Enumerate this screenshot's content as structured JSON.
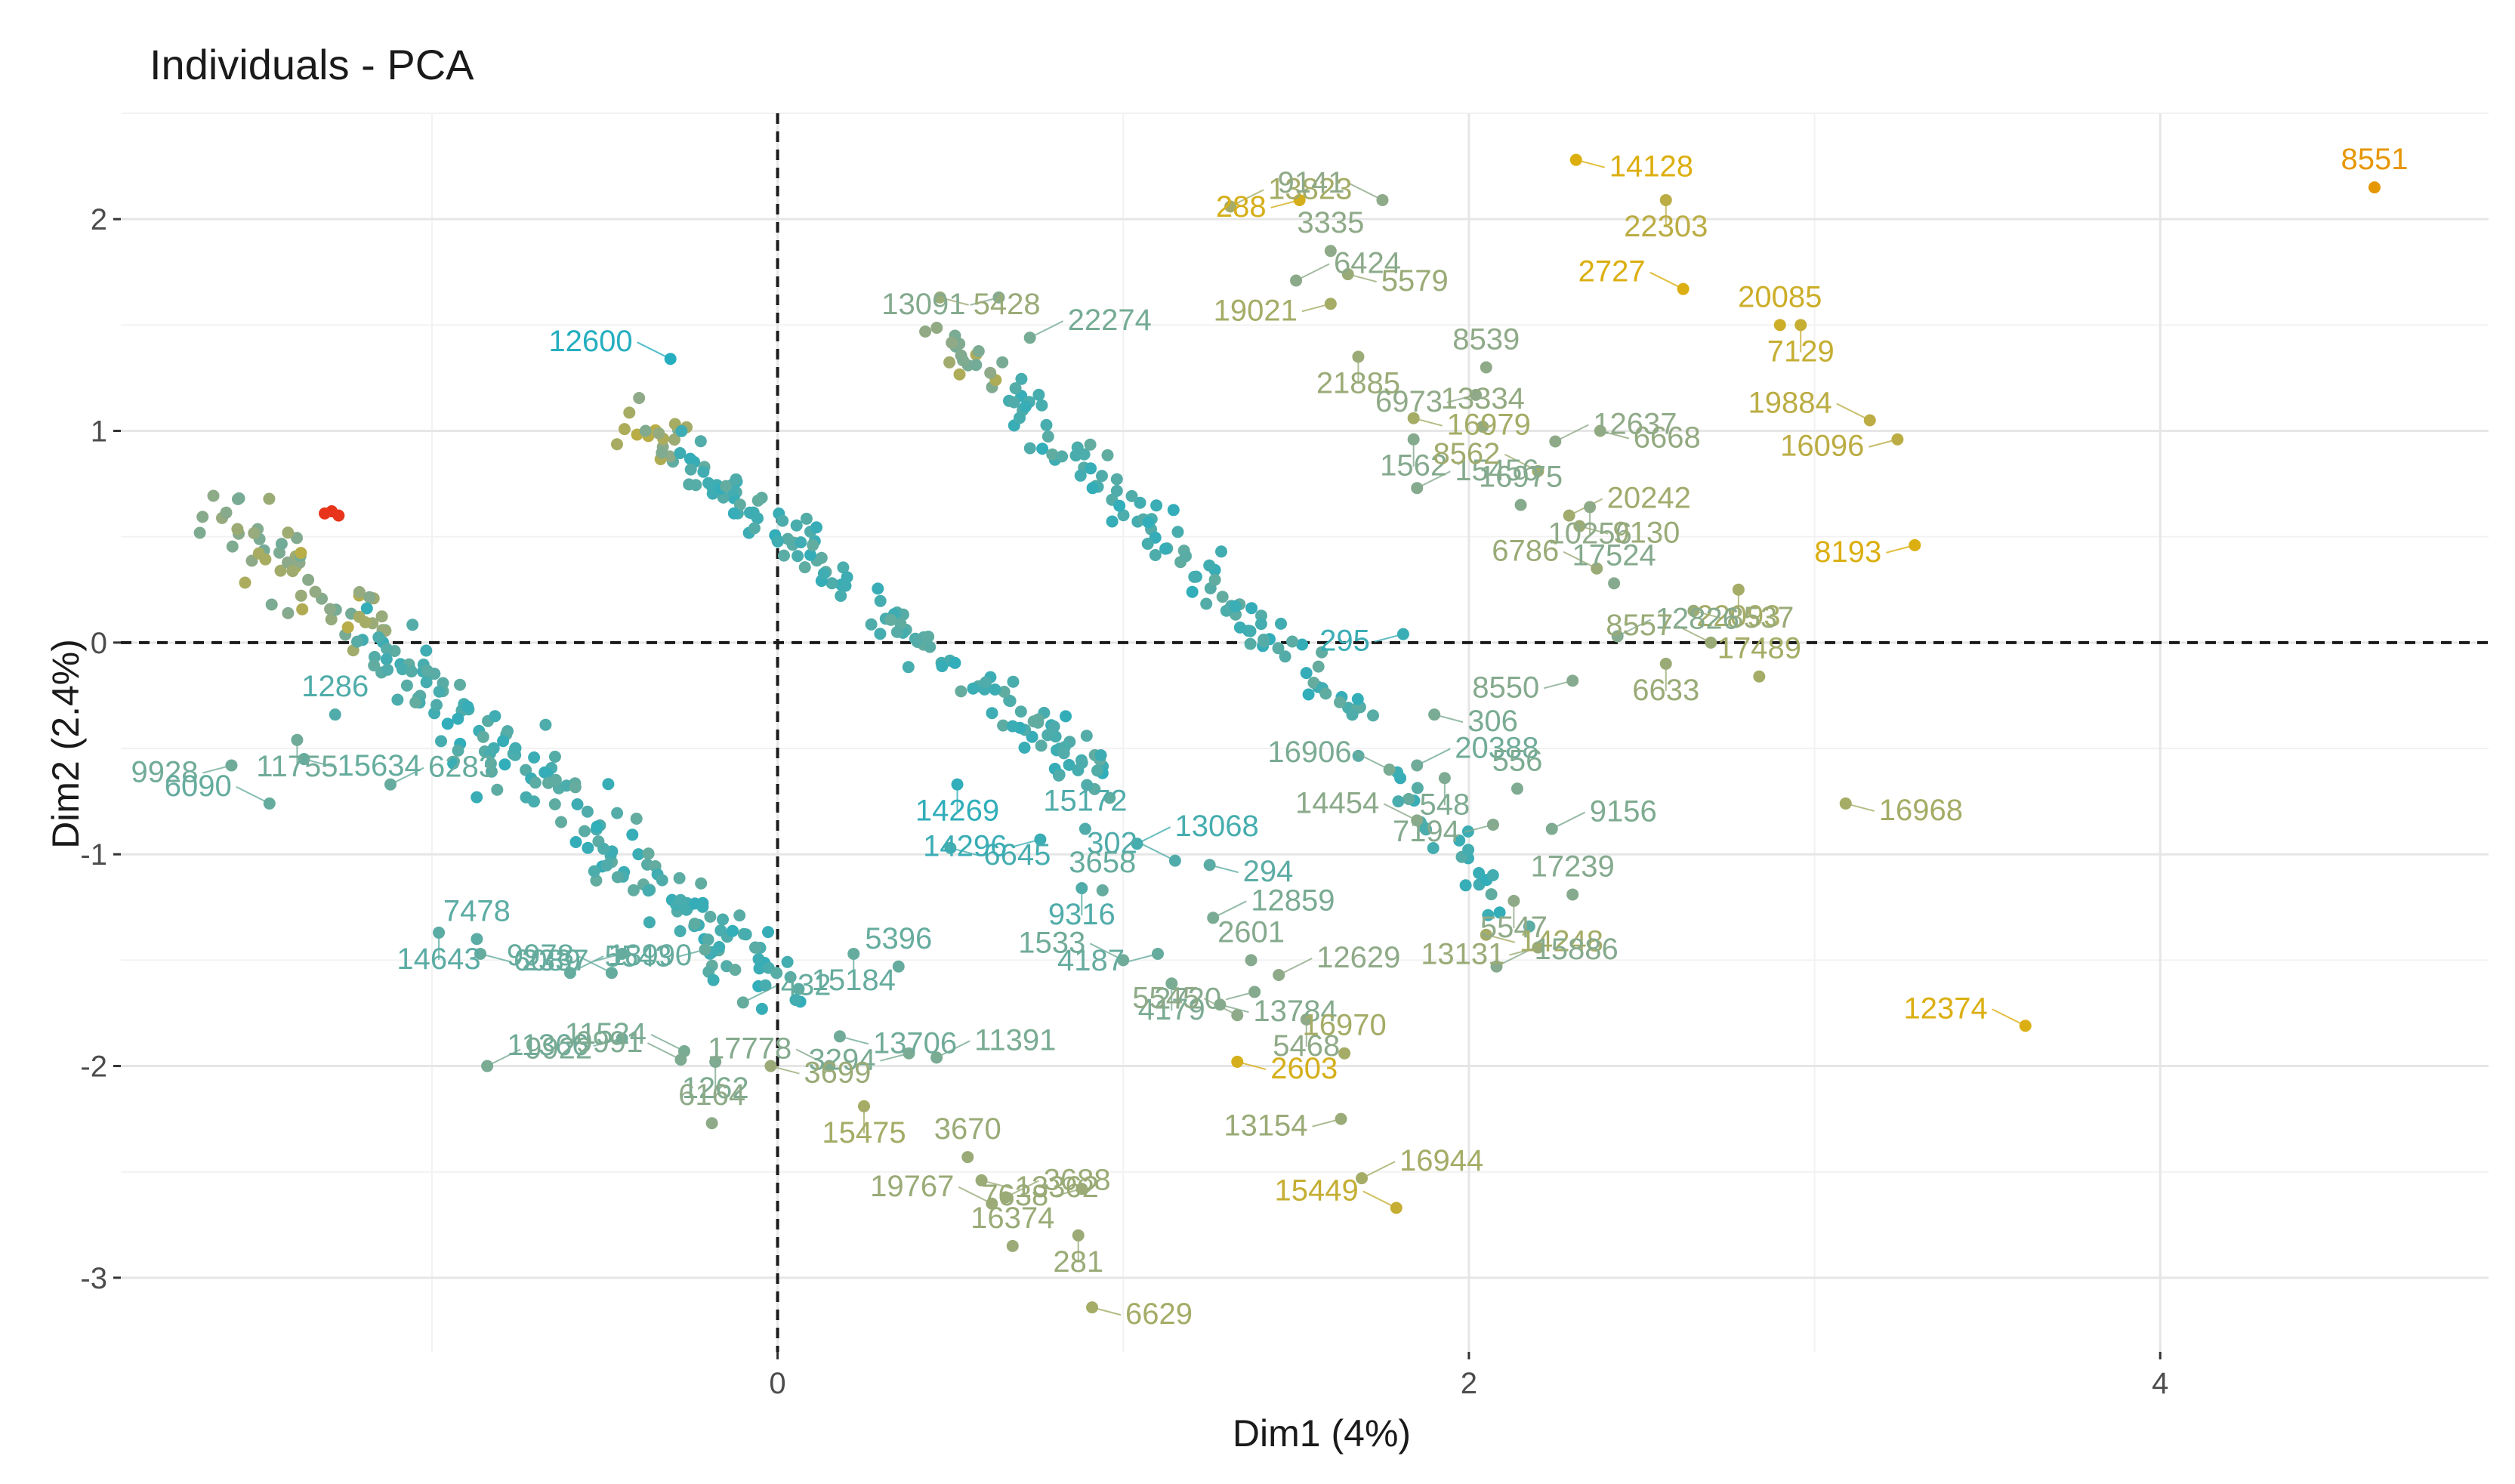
{
  "chart_data": {
    "type": "scatter",
    "title": "Individuals - PCA",
    "xlabel": "Dim1 (4%)",
    "ylabel": "Dim2 (2.4%)",
    "xlim": [
      -1.9,
      4.95
    ],
    "ylim": [
      -3.35,
      2.5
    ],
    "x_ticks": [
      0,
      2,
      4
    ],
    "x_tick_labels": [
      "0",
      "2",
      "4"
    ],
    "y_ticks": [
      2,
      1,
      0,
      -1,
      -2,
      -3
    ],
    "y_tick_labels": [
      "2",
      "1",
      "0",
      "-1",
      "-2",
      "-3"
    ],
    "x_minor_ticks": [
      -1,
      1,
      3
    ],
    "y_minor_ticks": [
      2.5,
      1.5,
      0.5,
      -0.5,
      -1.5,
      -2.5
    ],
    "reference_lines": {
      "x": 0,
      "y": 0,
      "style": "dashed"
    },
    "grid": true,
    "color_scale": {
      "low": "#26aec0",
      "mid": "#8faa88",
      "high": "#e6b000",
      "max": "#e8341a"
    },
    "labeled_points": [
      {
        "label": "8551",
        "x": 4.62,
        "y": 2.15,
        "c": 0.92
      },
      {
        "label": "14128",
        "x": 2.31,
        "y": 2.28,
        "c": 0.86
      },
      {
        "label": "288",
        "x": 1.51,
        "y": 2.09,
        "c": 0.82
      },
      {
        "label": "13823",
        "x": 1.31,
        "y": 2.06,
        "c": 0.6
      },
      {
        "label": "9141",
        "x": 1.75,
        "y": 2.09,
        "c": 0.5
      },
      {
        "label": "22303",
        "x": 2.57,
        "y": 2.09,
        "c": 0.7
      },
      {
        "label": "3335",
        "x": 1.6,
        "y": 1.85,
        "c": 0.5
      },
      {
        "label": "5579",
        "x": 1.65,
        "y": 1.74,
        "c": 0.55
      },
      {
        "label": "19021",
        "x": 1.6,
        "y": 1.6,
        "c": 0.6
      },
      {
        "label": "6424",
        "x": 1.5,
        "y": 1.71,
        "c": 0.48
      },
      {
        "label": "2727",
        "x": 2.62,
        "y": 1.67,
        "c": 0.85
      },
      {
        "label": "7129",
        "x": 2.96,
        "y": 1.5,
        "c": 0.75
      },
      {
        "label": "20085",
        "x": 2.9,
        "y": 1.5,
        "c": 0.78
      },
      {
        "label": "5428",
        "x": 0.47,
        "y": 1.63,
        "c": 0.55
      },
      {
        "label": "13091",
        "x": 0.64,
        "y": 1.63,
        "c": 0.45
      },
      {
        "label": "22274",
        "x": 0.73,
        "y": 1.44,
        "c": 0.38
      },
      {
        "label": "12600",
        "x": -0.31,
        "y": 1.34,
        "c": 0.0
      },
      {
        "label": "21885",
        "x": 1.68,
        "y": 1.35,
        "c": 0.55
      },
      {
        "label": "8539",
        "x": 2.05,
        "y": 1.3,
        "c": 0.5
      },
      {
        "label": "16979",
        "x": 1.84,
        "y": 1.06,
        "c": 0.6
      },
      {
        "label": "6973",
        "x": 2.02,
        "y": 1.17,
        "c": 0.5
      },
      {
        "label": "12637",
        "x": 2.25,
        "y": 0.95,
        "c": 0.5
      },
      {
        "label": "19884",
        "x": 3.16,
        "y": 1.05,
        "c": 0.7
      },
      {
        "label": "1562",
        "x": 1.84,
        "y": 0.96,
        "c": 0.45
      },
      {
        "label": "13334",
        "x": 2.04,
        "y": 1.02,
        "c": 0.52
      },
      {
        "label": "6668",
        "x": 2.38,
        "y": 1.0,
        "c": 0.52
      },
      {
        "label": "16096",
        "x": 3.24,
        "y": 0.96,
        "c": 0.7
      },
      {
        "label": "15456",
        "x": 1.85,
        "y": 0.73,
        "c": 0.45
      },
      {
        "label": "8562",
        "x": 2.2,
        "y": 0.81,
        "c": 0.58
      },
      {
        "label": "10256",
        "x": 2.35,
        "y": 0.64,
        "c": 0.5
      },
      {
        "label": "16975",
        "x": 2.15,
        "y": 0.65,
        "c": 0.45
      },
      {
        "label": "9130",
        "x": 2.32,
        "y": 0.55,
        "c": 0.55
      },
      {
        "label": "8193",
        "x": 3.29,
        "y": 0.46,
        "c": 0.85
      },
      {
        "label": "20242",
        "x": 2.29,
        "y": 0.6,
        "c": 0.58
      },
      {
        "label": "6786",
        "x": 2.37,
        "y": 0.35,
        "c": 0.55
      },
      {
        "label": "22093",
        "x": 2.78,
        "y": 0.25,
        "c": 0.6
      },
      {
        "label": "17524",
        "x": 2.42,
        "y": 0.28,
        "c": 0.45
      },
      {
        "label": "8537",
        "x": 2.65,
        "y": 0.15,
        "c": 0.55
      },
      {
        "label": "295",
        "x": 1.81,
        "y": 0.04,
        "c": 0.1
      },
      {
        "label": "12826",
        "x": 2.43,
        "y": 0.03,
        "c": 0.45
      },
      {
        "label": "8557",
        "x": 2.7,
        "y": 0.0,
        "c": 0.55
      },
      {
        "label": "6633",
        "x": 2.57,
        "y": -0.1,
        "c": 0.55
      },
      {
        "label": "17489",
        "x": 2.84,
        "y": -0.16,
        "c": 0.6
      },
      {
        "label": "306",
        "x": 1.9,
        "y": -0.34,
        "c": 0.4
      },
      {
        "label": "8550",
        "x": 2.3,
        "y": -0.18,
        "c": 0.45
      },
      {
        "label": "20388",
        "x": 1.85,
        "y": -0.58,
        "c": 0.35
      },
      {
        "label": "16906",
        "x": 1.77,
        "y": -0.6,
        "c": 0.4
      },
      {
        "label": "548",
        "x": 1.93,
        "y": -0.64,
        "c": 0.42
      },
      {
        "label": "556",
        "x": 2.14,
        "y": -0.69,
        "c": 0.42
      },
      {
        "label": "16968",
        "x": 3.09,
        "y": -0.76,
        "c": 0.6
      },
      {
        "label": "7194",
        "x": 2.07,
        "y": -0.86,
        "c": 0.45
      },
      {
        "label": "9156",
        "x": 2.24,
        "y": -0.88,
        "c": 0.42
      },
      {
        "label": "14454",
        "x": 1.85,
        "y": -0.84,
        "c": 0.48
      },
      {
        "label": "5547",
        "x": 2.13,
        "y": -1.22,
        "c": 0.5
      },
      {
        "label": "17239",
        "x": 2.3,
        "y": -1.19,
        "c": 0.45
      },
      {
        "label": "14248",
        "x": 2.05,
        "y": -1.38,
        "c": 0.6
      },
      {
        "label": "13131",
        "x": 2.2,
        "y": -1.44,
        "c": 0.55
      },
      {
        "label": "15886",
        "x": 2.08,
        "y": -1.53,
        "c": 0.45
      },
      {
        "label": "12374",
        "x": 3.61,
        "y": -1.81,
        "c": 0.85
      },
      {
        "label": "14269",
        "x": 0.52,
        "y": -0.67,
        "c": 0.05
      },
      {
        "label": "15172",
        "x": 0.89,
        "y": -0.88,
        "c": 0.2
      },
      {
        "label": "6645",
        "x": 0.5,
        "y": -0.97,
        "c": 0.15
      },
      {
        "label": "14296",
        "x": 0.76,
        "y": -0.93,
        "c": 0.1
      },
      {
        "label": "13068",
        "x": 1.04,
        "y": -0.95,
        "c": 0.15
      },
      {
        "label": "302",
        "x": 1.15,
        "y": -1.03,
        "c": 0.2
      },
      {
        "label": "9316",
        "x": 0.88,
        "y": -1.16,
        "c": 0.2
      },
      {
        "label": "3658",
        "x": 0.94,
        "y": -1.17,
        "c": 0.3
      },
      {
        "label": "294",
        "x": 1.25,
        "y": -1.05,
        "c": 0.25
      },
      {
        "label": "4187",
        "x": 1.1,
        "y": -1.47,
        "c": 0.3
      },
      {
        "label": "12859",
        "x": 1.26,
        "y": -1.3,
        "c": 0.4
      },
      {
        "label": "1533",
        "x": 1.0,
        "y": -1.5,
        "c": 0.35
      },
      {
        "label": "4179",
        "x": 1.14,
        "y": -1.61,
        "c": 0.4
      },
      {
        "label": "2601",
        "x": 1.37,
        "y": -1.5,
        "c": 0.45
      },
      {
        "label": "13784",
        "x": 1.28,
        "y": -1.71,
        "c": 0.45
      },
      {
        "label": "2720",
        "x": 1.38,
        "y": -1.65,
        "c": 0.45
      },
      {
        "label": "12629",
        "x": 1.45,
        "y": -1.57,
        "c": 0.5
      },
      {
        "label": "5545",
        "x": 1.33,
        "y": -1.76,
        "c": 0.5
      },
      {
        "label": "5468",
        "x": 1.53,
        "y": -1.78,
        "c": 0.5
      },
      {
        "label": "16970",
        "x": 1.64,
        "y": -1.94,
        "c": 0.6
      },
      {
        "label": "2603",
        "x": 1.33,
        "y": -1.98,
        "c": 0.82
      },
      {
        "label": "13154",
        "x": 1.63,
        "y": -2.25,
        "c": 0.55
      },
      {
        "label": "16944",
        "x": 1.69,
        "y": -2.53,
        "c": 0.6
      },
      {
        "label": "15449",
        "x": 1.79,
        "y": -2.67,
        "c": 0.75
      },
      {
        "label": "15184",
        "x": 0.22,
        "y": -1.47,
        "c": 0.3
      },
      {
        "label": "5396",
        "x": 0.35,
        "y": -1.53,
        "c": 0.3
      },
      {
        "label": "13706",
        "x": 0.18,
        "y": -1.86,
        "c": 0.35
      },
      {
        "label": "3294",
        "x": 0.38,
        "y": -1.94,
        "c": 0.4
      },
      {
        "label": "11391",
        "x": 0.46,
        "y": -1.96,
        "c": 0.4
      },
      {
        "label": "17778",
        "x": 0.15,
        "y": -2.0,
        "c": 0.45
      },
      {
        "label": "15475",
        "x": 0.25,
        "y": -2.19,
        "c": 0.6
      },
      {
        "label": "3670",
        "x": 0.55,
        "y": -2.43,
        "c": 0.55
      },
      {
        "label": "13362",
        "x": 0.59,
        "y": -2.54,
        "c": 0.55
      },
      {
        "label": "7638",
        "x": 0.88,
        "y": -2.58,
        "c": 0.55
      },
      {
        "label": "3688",
        "x": 0.66,
        "y": -2.62,
        "c": 0.55
      },
      {
        "label": "19767",
        "x": 0.62,
        "y": -2.65,
        "c": 0.55
      },
      {
        "label": "281",
        "x": 0.87,
        "y": -2.8,
        "c": 0.55
      },
      {
        "label": "16374",
        "x": 0.68,
        "y": -2.85,
        "c": 0.55
      },
      {
        "label": "6629",
        "x": 0.91,
        "y": -3.14,
        "c": 0.6
      },
      {
        "label": "5543",
        "x": -0.21,
        "y": -1.45,
        "c": 0.3
      },
      {
        "label": "432",
        "x": -0.1,
        "y": -1.7,
        "c": 0.3
      },
      {
        "label": "11524",
        "x": -0.27,
        "y": -1.93,
        "c": 0.4
      },
      {
        "label": "1262",
        "x": -0.18,
        "y": -1.98,
        "c": 0.42
      },
      {
        "label": "6164",
        "x": -0.19,
        "y": -2.27,
        "c": 0.5
      },
      {
        "label": "3699",
        "x": -0.02,
        "y": -2.0,
        "c": 0.55
      },
      {
        "label": "11366",
        "x": -0.45,
        "y": -1.87,
        "c": 0.35
      },
      {
        "label": "9922",
        "x": -0.84,
        "y": -2.0,
        "c": 0.4
      },
      {
        "label": "9991",
        "x": -0.28,
        "y": -1.97,
        "c": 0.42
      },
      {
        "label": "14643",
        "x": -0.98,
        "y": -1.37,
        "c": 0.25
      },
      {
        "label": "7478",
        "x": -0.87,
        "y": -1.4,
        "c": 0.25
      },
      {
        "label": "6089",
        "x": -0.86,
        "y": -1.47,
        "c": 0.3
      },
      {
        "label": "2337",
        "x": -0.45,
        "y": -1.47,
        "c": 0.3
      },
      {
        "label": "18990",
        "x": -0.6,
        "y": -1.56,
        "c": 0.3
      },
      {
        "label": "9978",
        "x": -0.48,
        "y": -1.56,
        "c": 0.3
      },
      {
        "label": "11755",
        "x": -1.39,
        "y": -0.46,
        "c": 0.35
      },
      {
        "label": "1286",
        "x": -1.28,
        "y": -0.34,
        "c": 0.2
      },
      {
        "label": "15634",
        "x": -1.37,
        "y": -0.55,
        "c": 0.3
      },
      {
        "label": "9928",
        "x": -1.58,
        "y": -0.58,
        "c": 0.35
      },
      {
        "label": "6283",
        "x": -1.12,
        "y": -0.67,
        "c": 0.3
      },
      {
        "label": "6090",
        "x": -1.47,
        "y": -0.76,
        "c": 0.3
      }
    ]
  }
}
